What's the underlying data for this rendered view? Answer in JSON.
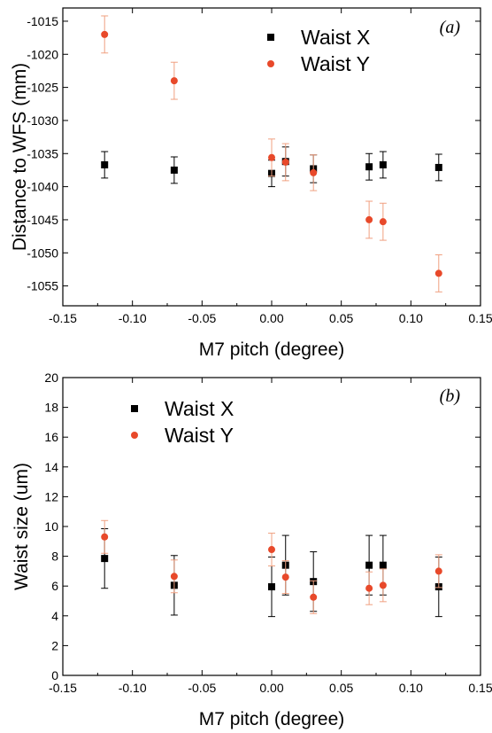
{
  "colors": {
    "waist_x": "#000000",
    "waist_y": "#e8492a",
    "waist_y_error": "#f0a080"
  },
  "chart_data": [
    {
      "type": "scatter",
      "panel_label": "(a)",
      "xlabel": "M7 pitch (degree)",
      "ylabel": "Distance to WFS (mm)",
      "xlim": [
        -0.15,
        0.15
      ],
      "ylim": [
        -1058,
        -1013
      ],
      "xticks": [
        "-0.15",
        "-0.10",
        "-0.05",
        "0.00",
        "0.05",
        "0.10",
        "0.15"
      ],
      "xtick_values": [
        -0.15,
        -0.1,
        -0.05,
        0.0,
        0.05,
        0.1,
        0.15
      ],
      "yticks": [
        "-1015",
        "-1020",
        "-1025",
        "-1030",
        "-1035",
        "-1040",
        "-1045",
        "-1050",
        "-1055"
      ],
      "ytick_values": [
        -1015,
        -1020,
        -1025,
        -1030,
        -1035,
        -1040,
        -1045,
        -1050,
        -1055
      ],
      "legend_position": "top-center",
      "series": [
        {
          "name": "Waist X",
          "marker": "square",
          "x": [
            -0.12,
            -0.07,
            0.0,
            0.01,
            0.03,
            0.07,
            0.08,
            0.12
          ],
          "y": [
            -1036.7,
            -1037.5,
            -1038.0,
            -1036.2,
            -1037.3,
            -1037.0,
            -1036.7,
            -1037.1
          ],
          "err": [
            2.0,
            2.0,
            2.0,
            2.2,
            2.1,
            2.0,
            2.0,
            2.0
          ]
        },
        {
          "name": "Waist Y",
          "marker": "circle",
          "x": [
            -0.12,
            -0.07,
            0.0,
            0.01,
            0.03,
            0.07,
            0.08,
            0.12
          ],
          "y": [
            -1017.0,
            -1024.0,
            -1035.6,
            -1036.3,
            -1037.9,
            -1045.0,
            -1045.3,
            -1053.1
          ],
          "err": [
            2.8,
            2.8,
            2.8,
            2.8,
            2.7,
            2.8,
            2.8,
            2.8
          ]
        }
      ]
    },
    {
      "type": "scatter",
      "panel_label": "(b)",
      "xlabel": "M7 pitch (degree)",
      "ylabel": "Waist size (um)",
      "xlim": [
        -0.15,
        0.15
      ],
      "ylim": [
        0,
        20
      ],
      "xticks": [
        "-0.15",
        "-0.10",
        "-0.05",
        "0.00",
        "0.05",
        "0.10",
        "0.15"
      ],
      "xtick_values": [
        -0.15,
        -0.1,
        -0.05,
        0.0,
        0.05,
        0.1,
        0.15
      ],
      "yticks": [
        "0",
        "2",
        "4",
        "6",
        "8",
        "10",
        "12",
        "14",
        "16",
        "18",
        "20"
      ],
      "ytick_values": [
        0,
        2,
        4,
        6,
        8,
        10,
        12,
        14,
        16,
        18,
        20
      ],
      "legend_position": "top-left",
      "series": [
        {
          "name": "Waist X",
          "marker": "square",
          "x": [
            -0.12,
            -0.07,
            0.0,
            0.01,
            0.03,
            0.07,
            0.08,
            0.12
          ],
          "y": [
            7.85,
            6.05,
            5.95,
            7.4,
            6.3,
            7.4,
            7.4,
            5.95
          ],
          "err": [
            2.0,
            2.0,
            2.0,
            2.0,
            2.0,
            2.0,
            2.0,
            2.0
          ]
        },
        {
          "name": "Waist Y",
          "marker": "circle",
          "x": [
            -0.12,
            -0.07,
            0.0,
            0.01,
            0.03,
            0.07,
            0.08,
            0.12
          ],
          "y": [
            9.3,
            6.65,
            8.45,
            6.6,
            5.25,
            5.85,
            6.05,
            7.0
          ],
          "err": [
            1.1,
            1.1,
            1.1,
            1.1,
            1.1,
            1.1,
            1.1,
            1.1
          ]
        }
      ]
    }
  ]
}
